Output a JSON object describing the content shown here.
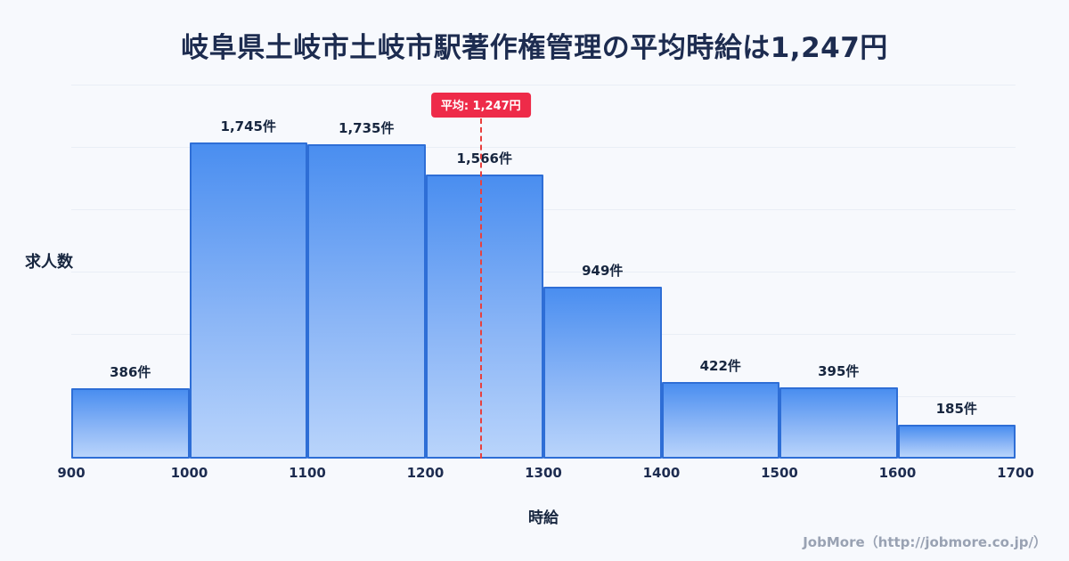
{
  "page": {
    "title": "岐阜県土岐市土岐市駅著作権管理の平均時給は1,247円",
    "footer": "JobMore（http://jobmore.co.jp/）"
  },
  "chart_data": {
    "type": "bar",
    "title": "岐阜県土岐市土岐市駅著作権管理の平均時給は1,247円",
    "xlabel": "時給",
    "ylabel": "求人数",
    "x_ticks": [
      900,
      1000,
      1100,
      1200,
      1300,
      1400,
      1500,
      1600,
      1700
    ],
    "bins": [
      [
        900,
        1000
      ],
      [
        1000,
        1100
      ],
      [
        1100,
        1200
      ],
      [
        1200,
        1300
      ],
      [
        1300,
        1400
      ],
      [
        1400,
        1500
      ],
      [
        1500,
        1600
      ],
      [
        1600,
        1700
      ]
    ],
    "values": [
      386,
      1745,
      1735,
      1566,
      949,
      422,
      395,
      185
    ],
    "bar_labels": [
      "386件",
      "1,745件",
      "1,735件",
      "1,566件",
      "949件",
      "422件",
      "395件",
      "185件"
    ],
    "average": 1247,
    "average_label": "平均: 1,247円",
    "ylim": [
      0,
      1900
    ],
    "grid": "faint horizontal",
    "legend": "none",
    "colors": {
      "bar_top": "#4a8ef0",
      "bar_bottom": "#b9d4fb",
      "bar_border": "#2e6ed6",
      "average_line": "#e8403e",
      "badge_background": "#ee2b49",
      "title_text": "#1d2c50",
      "background": "#f7f9fd",
      "footer_text": "#99a2b3"
    }
  }
}
